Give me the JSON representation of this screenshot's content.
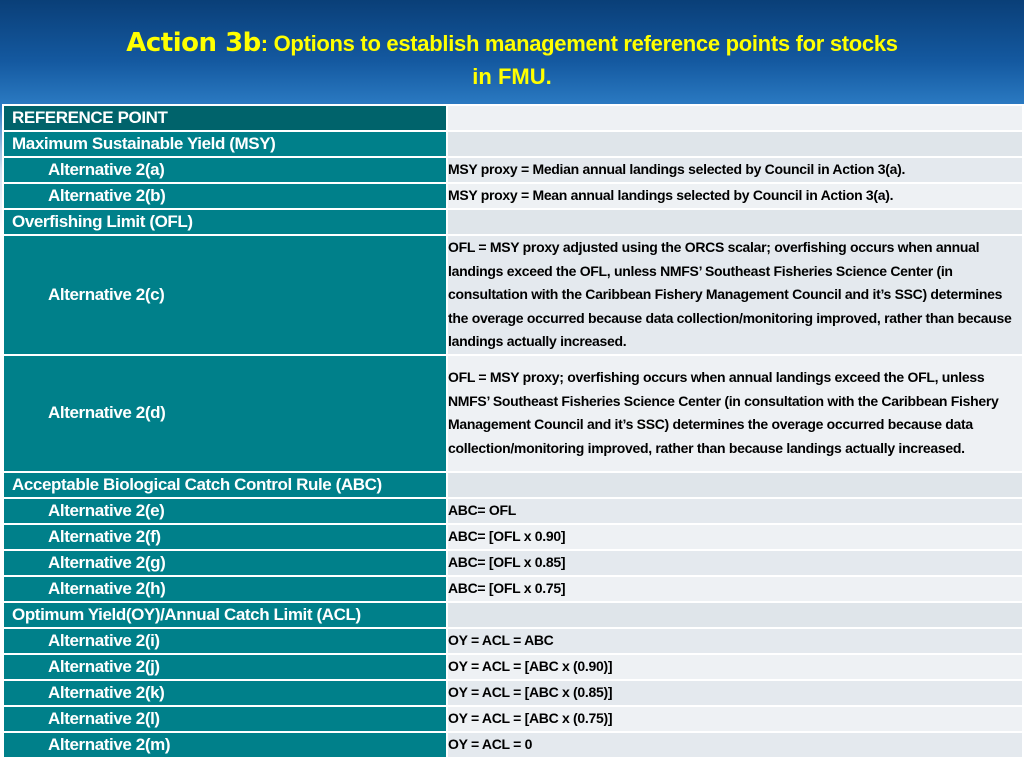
{
  "title": {
    "lead": "Action 3b",
    "rest": ": Options to establish management reference points for stocks",
    "line2": "in FMU."
  },
  "colors": {
    "label_cell": "#00808a",
    "header_cell": "#00636b",
    "title_text": "#ffff00"
  },
  "table": {
    "header": "REFERENCE POINT",
    "rows": [
      {
        "label": "Maximum Sustainable Yield (MSY)",
        "value": ""
      },
      {
        "label": "Alternative 2(a)",
        "value": "MSY proxy = Median annual landings selected by Council in Action 3(a)."
      },
      {
        "label": "Alternative 2(b)",
        "value": "MSY proxy = Mean annual landings selected by Council in Action 3(a)."
      },
      {
        "label": "Overfishing Limit (OFL)",
        "value": ""
      },
      {
        "label": "Alternative 2(c)",
        "value": "OFL = MSY proxy adjusted using the ORCS scalar; overfishing occurs when annual landings exceed the OFL, unless NMFS’ Southeast Fisheries Science Center (in consultation with the Caribbean Fishery Management Council and it’s SSC) determines the overage occurred because data collection/monitoring improved, rather than because landings actually increased."
      },
      {
        "label": "Alternative 2(d)",
        "value": "OFL = MSY proxy; overfishing occurs when annual landings exceed the OFL, unless NMFS’ Southeast Fisheries Science Center (in consultation with the Caribbean Fishery Management Council and it’s SSC) determines the overage occurred because data collection/monitoring improved, rather than because landings actually increased."
      },
      {
        "label": "Acceptable Biological Catch Control Rule (ABC)",
        "value": ""
      },
      {
        "label": "Alternative 2(e)",
        "value": "ABC= OFL"
      },
      {
        "label": "Alternative 2(f)",
        "value": "ABC= [OFL x 0.90]"
      },
      {
        "label": "Alternative 2(g)",
        "value": "ABC= [OFL x 0.85]"
      },
      {
        "label": "Alternative 2(h)",
        "value": "ABC= [OFL x 0.75]"
      },
      {
        "label": "Optimum Yield(OY)/Annual Catch Limit (ACL)",
        "value": ""
      },
      {
        "label": "Alternative 2(i)",
        "value": "OY = ACL = ABC"
      },
      {
        "label": "Alternative 2(j)",
        "value": "OY = ACL = [ABC x (0.90)]"
      },
      {
        "label": "Alternative 2(k)",
        "value": "OY = ACL = [ABC x (0.85)]"
      },
      {
        "label": "Alternative 2(l)",
        "value": "OY = ACL = [ABC x (0.75)]"
      },
      {
        "label": "Alternative 2(m)",
        "value": "OY = ACL = 0"
      }
    ]
  }
}
